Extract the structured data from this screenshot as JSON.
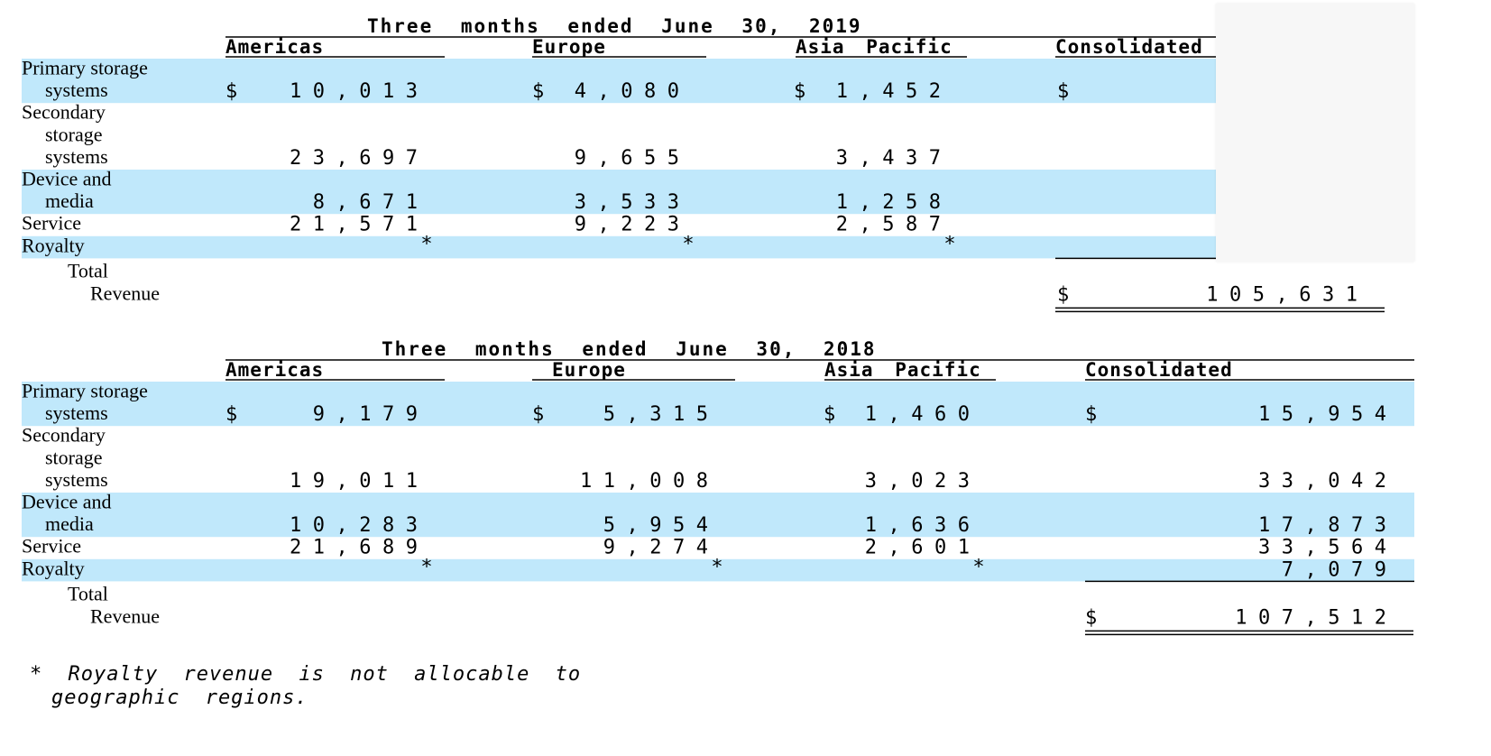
{
  "tables": [
    {
      "title": "Three months ended June 30, 2019",
      "headers": [
        "Americas",
        "Europe",
        "Asia Pacific",
        "Consolidated"
      ],
      "rows": [
        {
          "label": [
            "Primary storage",
            "systems"
          ],
          "cells": [
            {
              "prefix": "$",
              "value": "10,013"
            },
            {
              "prefix": "$",
              "value": "4,080"
            },
            {
              "prefix": "$",
              "value": "1,452"
            },
            {
              "prefix": "$"
            }
          ]
        },
        {
          "label": [
            "Secondary",
            "storage",
            "systems"
          ],
          "cells": [
            {
              "value": "23,697"
            },
            {
              "value": "9,655"
            },
            {
              "value": "3,437"
            }
          ]
        },
        {
          "label": [
            "Device and",
            "media"
          ],
          "cells": [
            {
              "value": "8,671"
            },
            {
              "value": "3,533"
            },
            {
              "value": "1,258"
            }
          ]
        },
        {
          "label": [
            "Service"
          ],
          "cells": [
            {
              "value": "21,571"
            },
            {
              "value": "9,223"
            },
            {
              "value": "2,587"
            }
          ]
        },
        {
          "label": [
            "Royalty"
          ],
          "cells": [
            {
              "value": "*"
            },
            {
              "value": "*"
            },
            {
              "value": "*"
            }
          ]
        }
      ],
      "total": {
        "label": [
          "Total",
          "Revenue"
        ],
        "prefix": "$",
        "value": "105,631"
      }
    },
    {
      "title": "Three months ended June 30, 2018",
      "headers": [
        "Americas",
        "Europe",
        "Asia Pacific",
        "Consolidated"
      ],
      "rows": [
        {
          "label": [
            "Primary storage",
            "systems"
          ],
          "cells": [
            {
              "prefix": "$",
              "value": "9,179"
            },
            {
              "prefix": "$",
              "value": "5,315"
            },
            {
              "prefix": "$",
              "value": "1,460"
            },
            {
              "prefix": "$",
              "value": "15,954"
            }
          ]
        },
        {
          "label": [
            "Secondary",
            "storage",
            "systems"
          ],
          "cells": [
            {
              "value": "19,011"
            },
            {
              "value": "11,008"
            },
            {
              "value": "3,023"
            },
            {
              "value": "33,042"
            }
          ]
        },
        {
          "label": [
            "Device and",
            "media"
          ],
          "cells": [
            {
              "value": "10,283"
            },
            {
              "value": "5,954"
            },
            {
              "value": "1,636"
            },
            {
              "value": "17,873"
            }
          ]
        },
        {
          "label": [
            "Service"
          ],
          "cells": [
            {
              "value": "21,689"
            },
            {
              "value": "9,274"
            },
            {
              "value": "2,601"
            },
            {
              "value": "33,564"
            }
          ]
        },
        {
          "label": [
            "Royalty"
          ],
          "cells": [
            {
              "value": "*"
            },
            {
              "value": "*"
            },
            {
              "value": "*"
            },
            {
              "value": "7,079"
            }
          ]
        }
      ],
      "total": {
        "label": [
          "Total",
          "Revenue"
        ],
        "prefix": "$",
        "value": "107,512"
      }
    }
  ],
  "footnote": [
    "* Royalty revenue is not allocable to",
    "geographic regions."
  ]
}
